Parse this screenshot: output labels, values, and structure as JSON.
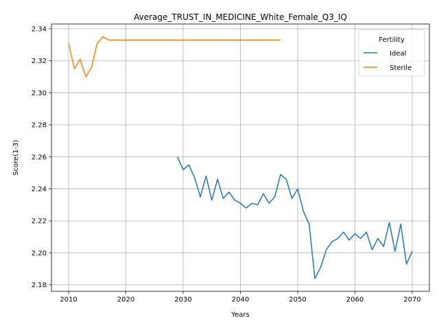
{
  "chart_data": {
    "type": "line",
    "title": "Average_TRUST_IN_MEDICINE_White_Female_Q3_IQ",
    "xlabel": "Years",
    "ylabel": "Score(1-3)",
    "xlim": [
      2007,
      2073
    ],
    "ylim": [
      2.176,
      2.343
    ],
    "xticks": [
      2010,
      2020,
      2030,
      2040,
      2050,
      2060,
      2070
    ],
    "yticks": [
      2.18,
      2.2,
      2.22,
      2.24,
      2.26,
      2.28,
      2.3,
      2.32,
      2.34
    ],
    "grid": true,
    "legend": {
      "title": "Fertility",
      "placement": "top-right"
    },
    "series": [
      {
        "name": "Ideal",
        "color": "#1f77b4",
        "x": [
          2029,
          2030,
          2031,
          2032,
          2033,
          2034,
          2035,
          2036,
          2037,
          2038,
          2039,
          2040,
          2041,
          2042,
          2043,
          2044,
          2045,
          2046,
          2047,
          2048,
          2049,
          2050,
          2051,
          2052,
          2053,
          2054,
          2055,
          2056,
          2057,
          2058,
          2059,
          2060,
          2061,
          2062,
          2063,
          2064,
          2065,
          2066,
          2067,
          2068,
          2069,
          2070
        ],
        "values": [
          2.26,
          2.252,
          2.255,
          2.247,
          2.235,
          2.248,
          2.233,
          2.246,
          2.234,
          2.238,
          2.233,
          2.231,
          2.228,
          2.231,
          2.23,
          2.237,
          2.231,
          2.235,
          2.249,
          2.246,
          2.234,
          2.24,
          2.226,
          2.218,
          2.184,
          2.191,
          2.202,
          2.207,
          2.209,
          2.213,
          2.208,
          2.212,
          2.209,
          2.213,
          2.202,
          2.209,
          2.204,
          2.219,
          2.201,
          2.218,
          2.193,
          2.201
        ]
      },
      {
        "name": "Sterile",
        "color": "#ff7f0e",
        "x": [
          2010,
          2011,
          2012,
          2013,
          2014,
          2015,
          2016,
          2017,
          2018,
          2019,
          2020,
          2021,
          2022,
          2023,
          2024,
          2025,
          2026,
          2027,
          2028,
          2029,
          2030,
          2031,
          2032,
          2033,
          2034,
          2035,
          2036,
          2037,
          2038,
          2039,
          2040,
          2041,
          2042,
          2043,
          2044,
          2045,
          2046,
          2047
        ],
        "values": [
          2.331,
          2.315,
          2.321,
          2.31,
          2.316,
          2.331,
          2.335,
          2.333,
          2.333,
          2.333,
          2.333,
          2.333,
          2.333,
          2.333,
          2.333,
          2.333,
          2.333,
          2.333,
          2.333,
          2.333,
          2.333,
          2.333,
          2.333,
          2.333,
          2.333,
          2.333,
          2.333,
          2.333,
          2.333,
          2.333,
          2.333,
          2.333,
          2.333,
          2.333,
          2.333,
          2.333,
          2.333,
          2.333
        ]
      }
    ]
  }
}
